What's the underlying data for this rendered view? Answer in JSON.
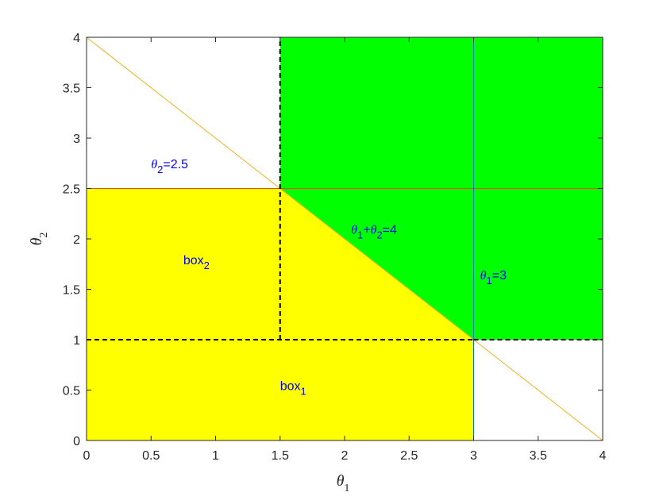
{
  "chart_data": {
    "type": "area",
    "xlabel": {
      "base": "θ",
      "sub": "1"
    },
    "ylabel": {
      "base": "θ",
      "sub": "2"
    },
    "xlim": [
      0,
      4
    ],
    "ylim": [
      0,
      4
    ],
    "xticks": [
      0,
      0.5,
      1,
      1.5,
      2,
      2.5,
      3,
      3.5,
      4
    ],
    "yticks": [
      0,
      0.5,
      1,
      1.5,
      2,
      2.5,
      3,
      3.5,
      4
    ],
    "xtick_labels": [
      "0",
      "0.5",
      "1",
      "1.5",
      "2",
      "2.5",
      "3",
      "3.5",
      "4"
    ],
    "ytick_labels": [
      "0",
      "0.5",
      "1",
      "1.5",
      "2",
      "2.5",
      "3",
      "3.5",
      "4"
    ],
    "grid": false,
    "regions": [
      {
        "color": "#ffff00",
        "polygon": [
          [
            0,
            0
          ],
          [
            3,
            0
          ],
          [
            3,
            1
          ],
          [
            1.5,
            2.5
          ],
          [
            0,
            2.5
          ]
        ]
      },
      {
        "color": "#00ff00",
        "polygon": [
          [
            1.5,
            2.5
          ],
          [
            1.5,
            4
          ],
          [
            4,
            4
          ],
          [
            4,
            1
          ],
          [
            3,
            1
          ]
        ]
      }
    ],
    "lines": [
      {
        "color": "#edb120",
        "points": [
          [
            0,
            4
          ],
          [
            4,
            0
          ]
        ]
      },
      {
        "color": "#d95319",
        "points": [
          [
            0,
            2.5
          ],
          [
            4,
            2.5
          ]
        ]
      },
      {
        "color": "#0072bd",
        "points": [
          [
            3,
            0
          ],
          [
            3,
            4
          ]
        ]
      }
    ],
    "dashed_lines": [
      {
        "color": "#000000",
        "points": [
          [
            0,
            1
          ],
          [
            3,
            1
          ]
        ]
      },
      {
        "color": "#000000",
        "points": [
          [
            1.5,
            1
          ],
          [
            1.5,
            4
          ]
        ]
      },
      {
        "color": "#000000",
        "points": [
          [
            3,
            1
          ],
          [
            4,
            1
          ]
        ]
      }
    ],
    "annotations": [
      {
        "parts": [
          [
            "θ",
            "italic"
          ],
          [
            "2",
            "sub"
          ],
          [
            "=2.5",
            "normal"
          ]
        ],
        "at": [
          0.5,
          2.7
        ]
      },
      {
        "parts": [
          [
            "θ",
            "italic"
          ],
          [
            "1",
            "sub"
          ],
          [
            "+",
            "normal"
          ],
          [
            "θ",
            "italic"
          ],
          [
            "2",
            "sub"
          ],
          [
            "=4",
            "normal"
          ]
        ],
        "at": [
          2.05,
          2.05
        ]
      },
      {
        "parts": [
          [
            "box",
            "normal"
          ],
          [
            "2",
            "sub"
          ]
        ],
        "at": [
          0.75,
          1.75
        ]
      },
      {
        "parts": [
          [
            "θ",
            "italic"
          ],
          [
            "1",
            "sub"
          ],
          [
            "=3",
            "normal"
          ]
        ],
        "at": [
          3.05,
          1.6
        ]
      },
      {
        "parts": [
          [
            "box",
            "normal"
          ],
          [
            "1",
            "sub"
          ]
        ],
        "at": [
          1.5,
          0.5
        ]
      }
    ],
    "colors": {
      "axis": "#262626",
      "annotation": "#0000ff",
      "yellow": "#ffff00",
      "green": "#00ff00"
    }
  }
}
